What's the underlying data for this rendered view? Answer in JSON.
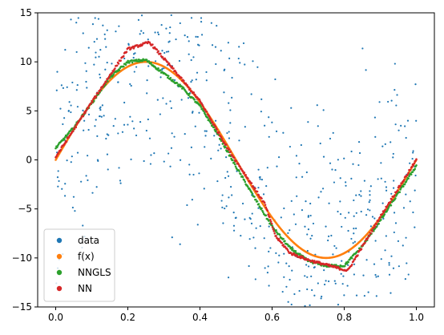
{
  "chart_data": {
    "type": "scatter",
    "xlim": [
      -0.05,
      1.05
    ],
    "ylim": [
      -15,
      15
    ],
    "xticks": [
      "0.0",
      "0.2",
      "0.4",
      "0.6",
      "0.8",
      "1.0"
    ],
    "yticks": [
      "-15",
      "-10",
      "-5",
      "0",
      "5",
      "10",
      "15"
    ],
    "grid": false,
    "legend_position": "lower-left",
    "data_points": 700,
    "series": [
      {
        "name": "data",
        "color": "#1f77b4",
        "style": "points"
      },
      {
        "name": "f(x)",
        "color": "#ff7f0e",
        "style": "dense-points",
        "x": [
          0.0,
          0.05,
          0.1,
          0.15,
          0.2,
          0.25,
          0.3,
          0.35,
          0.4,
          0.45,
          0.5,
          0.55,
          0.6,
          0.65,
          0.7,
          0.75,
          0.8,
          0.85,
          0.9,
          0.95,
          1.0
        ],
        "y": [
          0.0,
          3.09,
          5.88,
          8.09,
          9.51,
          10.0,
          9.51,
          8.09,
          5.88,
          3.09,
          0.0,
          -3.09,
          -5.88,
          -8.09,
          -9.51,
          -10.0,
          -9.51,
          -8.09,
          -5.88,
          -3.09,
          0.0
        ]
      },
      {
        "name": "NNGLS",
        "color": "#2ca02c",
        "style": "dense-points",
        "x": [
          0.0,
          0.05,
          0.1,
          0.15,
          0.2,
          0.25,
          0.3,
          0.35,
          0.4,
          0.45,
          0.5,
          0.55,
          0.6,
          0.65,
          0.7,
          0.75,
          0.8,
          0.85,
          0.9,
          0.95,
          1.0
        ],
        "y": [
          1.2,
          3.3,
          5.8,
          8.4,
          10.0,
          10.2,
          8.8,
          7.4,
          5.5,
          2.6,
          -0.7,
          -3.8,
          -6.8,
          -9.0,
          -10.3,
          -10.8,
          -10.8,
          -8.8,
          -6.2,
          -3.4,
          -0.6
        ]
      },
      {
        "name": "NN",
        "color": "#d62728",
        "style": "dense-points",
        "x": [
          0.0,
          0.1,
          0.2,
          0.26,
          0.32,
          0.4,
          0.48,
          0.58,
          0.61,
          0.65,
          0.7,
          0.75,
          0.81,
          0.9,
          1.0
        ],
        "y": [
          0.3,
          5.9,
          11.3,
          12.0,
          9.5,
          6.0,
          1.0,
          -4.5,
          -7.8,
          -9.5,
          -10.2,
          -10.7,
          -11.3,
          -5.8,
          0.0
        ]
      }
    ]
  }
}
